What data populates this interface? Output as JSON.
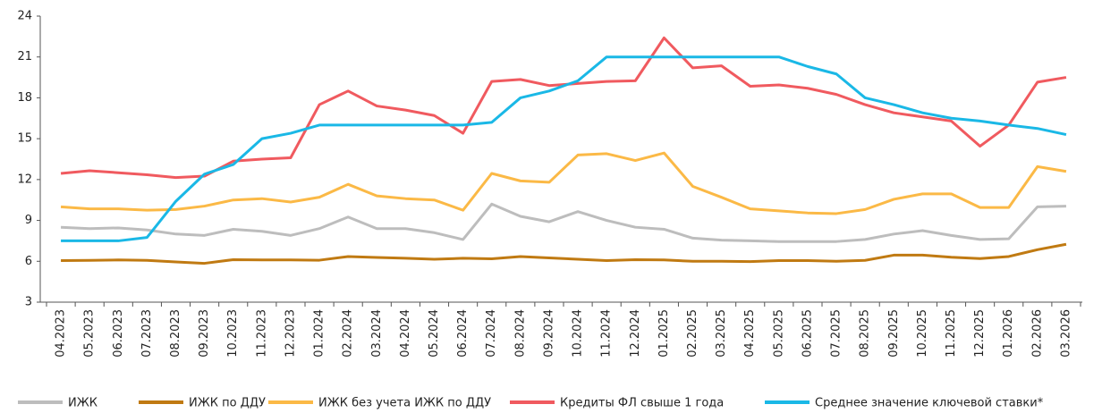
{
  "chart_data": {
    "type": "line",
    "categories": [
      "04.2023",
      "05.2023",
      "06.2023",
      "07.2023",
      "08.2023",
      "09.2023",
      "10.2023",
      "11.2023",
      "12.2023",
      "01.2024",
      "02.2024",
      "03.2024",
      "04.2024",
      "05.2024",
      "06.2024",
      "07.2024",
      "08.2024",
      "09.2024",
      "10.2024",
      "11.2024",
      "12.2024",
      "01.2025",
      "02.2025",
      "03.2025",
      "04.2025",
      "05.2025",
      "06.2025",
      "07.2025",
      "08.2025",
      "09.2025",
      "10.2025",
      "11.2025",
      "12.2025",
      "01.2026",
      "02.2026",
      "03.2026"
    ],
    "series": [
      {
        "name": "ИЖК",
        "color": "#bdbdbd",
        "values": [
          8.5,
          8.4,
          8.45,
          8.3,
          8.0,
          7.9,
          8.35,
          8.2,
          7.9,
          8.4,
          9.25,
          8.4,
          8.4,
          8.1,
          7.6,
          10.2,
          9.3,
          8.9,
          9.65,
          9.0,
          8.5,
          8.35,
          7.7,
          7.55,
          7.5,
          7.45,
          7.45,
          7.45,
          7.6,
          8.0,
          8.25,
          7.9,
          7.6,
          7.65,
          10.0,
          10.05
        ]
      },
      {
        "name": "ИЖК по ДДУ",
        "color": "#c07a12",
        "values": [
          6.05,
          6.07,
          6.1,
          6.07,
          5.95,
          5.85,
          6.12,
          6.1,
          6.1,
          6.08,
          6.35,
          6.28,
          6.22,
          6.15,
          6.22,
          6.18,
          6.35,
          6.25,
          6.15,
          6.05,
          6.12,
          6.1,
          6.0,
          6.0,
          5.98,
          6.05,
          6.05,
          6.0,
          6.07,
          6.45,
          6.45,
          6.3,
          6.2,
          6.35,
          6.85,
          7.25
        ]
      },
      {
        "name": "ИЖК без учета ИЖК по ДДУ",
        "color": "#fbb946",
        "values": [
          10.0,
          9.85,
          9.85,
          9.75,
          9.8,
          10.05,
          10.5,
          10.6,
          10.35,
          10.7,
          11.65,
          10.8,
          10.6,
          10.5,
          9.75,
          12.45,
          11.9,
          11.8,
          13.8,
          13.9,
          13.4,
          13.95,
          11.5,
          10.7,
          9.85,
          9.7,
          9.55,
          9.5,
          9.8,
          10.55,
          10.95,
          10.95,
          9.95,
          9.95,
          12.95,
          12.6
        ]
      },
      {
        "name": "Кредиты ФЛ свыше 1 года",
        "color": "#f05a5f",
        "values": [
          12.45,
          12.65,
          12.5,
          12.35,
          12.15,
          12.25,
          13.35,
          13.5,
          13.6,
          17.5,
          18.5,
          17.4,
          17.1,
          16.7,
          15.4,
          19.2,
          19.35,
          18.9,
          19.05,
          19.2,
          19.25,
          22.4,
          20.2,
          20.35,
          18.85,
          18.95,
          18.7,
          18.25,
          17.5,
          16.9,
          16.6,
          16.3,
          14.45,
          16.0,
          19.15,
          19.5
        ]
      },
      {
        "name": "Среднее значение ключевой ставки*",
        "color": "#1ab8e6",
        "values": [
          7.5,
          7.5,
          7.5,
          7.75,
          10.4,
          12.4,
          13.1,
          15.0,
          15.4,
          16.0,
          16.0,
          16.0,
          16.0,
          16.0,
          16.0,
          16.2,
          18.0,
          18.5,
          19.25,
          21,
          21,
          21,
          21,
          21,
          21,
          21,
          20.3,
          19.75,
          18.0,
          17.5,
          16.9,
          16.5,
          16.3,
          16.0,
          15.75,
          15.3
        ]
      }
    ],
    "ylim": [
      3,
      24
    ],
    "yticks": [
      3,
      6,
      9,
      12,
      15,
      18,
      21,
      24
    ],
    "legend": "bottom"
  }
}
